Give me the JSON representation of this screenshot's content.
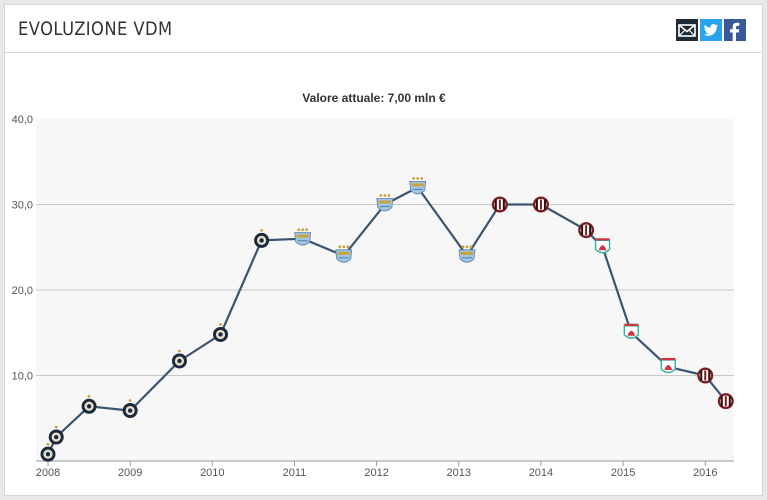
{
  "header": {
    "title": "EVOLUZIONE VDM",
    "share": {
      "email_icon": "email-icon",
      "twitter_icon": "twitter-icon",
      "facebook_icon": "facebook-icon"
    }
  },
  "colors": {
    "line": "#3b5470",
    "plot_bg": "#f7f7f7",
    "grid": "#c8c8c8",
    "inter_ring": "#1b2a3c",
    "inter_inner": "#e9e2cc",
    "city_sky": "#9fc6e6",
    "city_gold": "#caa43a",
    "milan_red": "#7a1e22",
    "liverpool_red": "#d0343e",
    "liverpool_teal": "#2fb3a1"
  },
  "chart_data": {
    "type": "line",
    "title": "Valore attuale: 7,00 mln €",
    "xlabel": "",
    "ylabel": "",
    "xlim": [
      2008,
      2016.35
    ],
    "ylim": [
      0,
      40
    ],
    "y_ticks": [
      10,
      20,
      30,
      40
    ],
    "y_tick_labels": [
      "10,0",
      "20,0",
      "30,0",
      "40,0"
    ],
    "x_ticks": [
      2008,
      2009,
      2010,
      2011,
      2012,
      2013,
      2014,
      2015,
      2016
    ],
    "x_tick_labels": [
      "2008",
      "2009",
      "2010",
      "2011",
      "2012",
      "2013",
      "2014",
      "2015",
      "2016"
    ],
    "grid": true,
    "legend": "none",
    "series": [
      {
        "points": [
          {
            "x": 2008.0,
            "y": 0.8,
            "club": "inter"
          },
          {
            "x": 2008.1,
            "y": 2.8,
            "club": "inter"
          },
          {
            "x": 2008.5,
            "y": 6.4,
            "club": "inter"
          },
          {
            "x": 2009.0,
            "y": 5.9,
            "club": "inter"
          },
          {
            "x": 2009.6,
            "y": 11.7,
            "club": "inter"
          },
          {
            "x": 2010.1,
            "y": 14.8,
            "club": "inter"
          },
          {
            "x": 2010.6,
            "y": 25.8,
            "club": "inter"
          },
          {
            "x": 2011.1,
            "y": 26.0,
            "club": "manchester-city"
          },
          {
            "x": 2011.6,
            "y": 24.0,
            "club": "manchester-city"
          },
          {
            "x": 2012.1,
            "y": 30.0,
            "club": "manchester-city"
          },
          {
            "x": 2012.5,
            "y": 32.0,
            "club": "manchester-city"
          },
          {
            "x": 2013.1,
            "y": 24.0,
            "club": "manchester-city"
          },
          {
            "x": 2013.5,
            "y": 30.0,
            "club": "milan"
          },
          {
            "x": 2014.0,
            "y": 30.0,
            "club": "milan"
          },
          {
            "x": 2014.55,
            "y": 27.0,
            "club": "milan"
          },
          {
            "x": 2014.75,
            "y": 25.0,
            "club": "liverpool"
          },
          {
            "x": 2015.1,
            "y": 15.0,
            "club": "liverpool"
          },
          {
            "x": 2015.55,
            "y": 11.0,
            "club": "liverpool"
          },
          {
            "x": 2016.0,
            "y": 10.0,
            "club": "milan"
          },
          {
            "x": 2016.25,
            "y": 7.0,
            "club": "milan"
          }
        ]
      }
    ]
  }
}
